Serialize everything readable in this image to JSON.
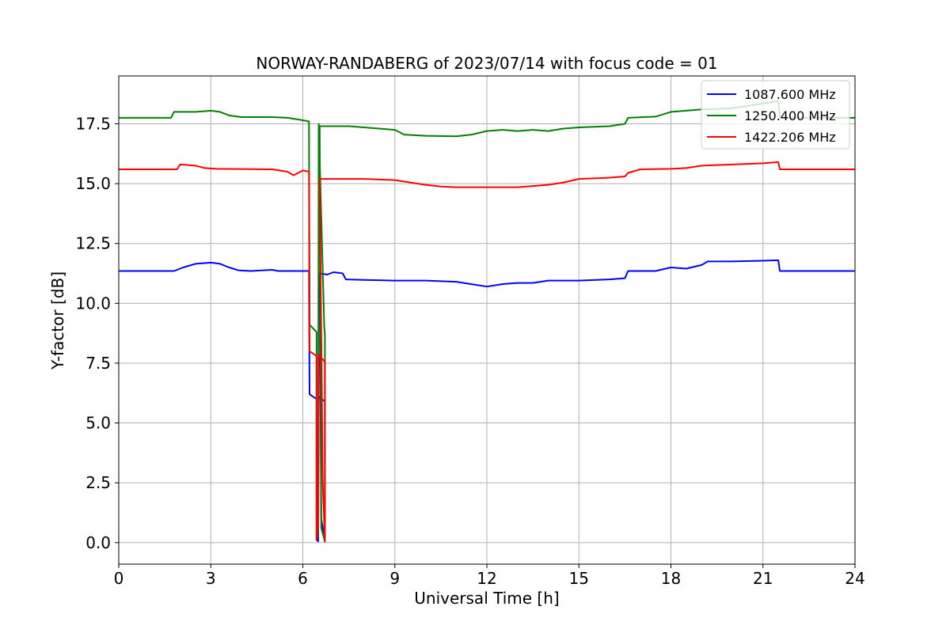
{
  "chart_data": {
    "type": "line",
    "title": "NORWAY-RANDABERG of 2023/07/14 with focus code = 01",
    "xlabel": "Universal Time [h]",
    "ylabel": "Y-factor [dB]",
    "xlim": [
      0,
      24
    ],
    "ylim": [
      -0.9,
      19.5
    ],
    "xticks": [
      0,
      3,
      6,
      9,
      12,
      15,
      18,
      21,
      24
    ],
    "xtick_labels": [
      "0",
      "3",
      "6",
      "9",
      "12",
      "15",
      "18",
      "21",
      "24"
    ],
    "yticks": [
      0.0,
      2.5,
      5.0,
      7.5,
      10.0,
      12.5,
      15.0,
      17.5
    ],
    "ytick_labels": [
      "0.0",
      "2.5",
      "5.0",
      "7.5",
      "10.0",
      "12.5",
      "15.0",
      "17.5"
    ],
    "grid": true,
    "legend_position": "top-right",
    "series": [
      {
        "name": "1087.600 MHz",
        "color": "#0000ff",
        "points": [
          [
            0,
            11.35
          ],
          [
            1.8,
            11.35
          ],
          [
            2.1,
            11.5
          ],
          [
            2.5,
            11.65
          ],
          [
            3.0,
            11.7
          ],
          [
            3.3,
            11.65
          ],
          [
            3.6,
            11.5
          ],
          [
            3.9,
            11.38
          ],
          [
            4.3,
            11.35
          ],
          [
            5.0,
            11.4
          ],
          [
            5.2,
            11.35
          ],
          [
            6.0,
            11.35
          ],
          [
            6.2,
            11.35
          ],
          [
            6.22,
            6.2
          ],
          [
            6.45,
            6.0
          ],
          [
            6.45,
            0.1
          ],
          [
            6.48,
            1.0
          ],
          [
            6.5,
            0.05
          ],
          [
            6.52,
            6.1
          ],
          [
            6.72,
            5.9
          ],
          [
            6.72,
            0.05
          ],
          [
            6.6,
            1.0
          ],
          [
            6.55,
            11.25
          ],
          [
            6.8,
            11.2
          ],
          [
            7.0,
            11.3
          ],
          [
            7.3,
            11.25
          ],
          [
            7.4,
            11.0
          ],
          [
            8.0,
            10.98
          ],
          [
            9.0,
            10.95
          ],
          [
            10.0,
            10.95
          ],
          [
            11.0,
            10.9
          ],
          [
            11.5,
            10.8
          ],
          [
            12.0,
            10.7
          ],
          [
            12.5,
            10.8
          ],
          [
            13.0,
            10.85
          ],
          [
            13.5,
            10.85
          ],
          [
            14.0,
            10.95
          ],
          [
            15.0,
            10.95
          ],
          [
            16.0,
            11.0
          ],
          [
            16.5,
            11.05
          ],
          [
            16.6,
            11.35
          ],
          [
            17.5,
            11.35
          ],
          [
            18.0,
            11.5
          ],
          [
            18.5,
            11.45
          ],
          [
            19.0,
            11.6
          ],
          [
            19.2,
            11.75
          ],
          [
            20.0,
            11.75
          ],
          [
            21.0,
            11.78
          ],
          [
            21.5,
            11.8
          ],
          [
            21.55,
            11.35
          ],
          [
            24.0,
            11.35
          ]
        ]
      },
      {
        "name": "1250.400 MHz",
        "color": "#008000",
        "points": [
          [
            0,
            17.75
          ],
          [
            1.7,
            17.75
          ],
          [
            1.8,
            18.0
          ],
          [
            2.5,
            18.0
          ],
          [
            3.0,
            18.05
          ],
          [
            3.3,
            18.0
          ],
          [
            3.6,
            17.85
          ],
          [
            4.0,
            17.78
          ],
          [
            5.0,
            17.78
          ],
          [
            5.5,
            17.75
          ],
          [
            6.0,
            17.65
          ],
          [
            6.2,
            17.6
          ],
          [
            6.22,
            9.1
          ],
          [
            6.45,
            8.8
          ],
          [
            6.45,
            0.1
          ],
          [
            6.5,
            0.5
          ],
          [
            6.52,
            17.5
          ],
          [
            6.7,
            9.0
          ],
          [
            6.72,
            8.7
          ],
          [
            6.72,
            0.05
          ],
          [
            6.6,
            0.6
          ],
          [
            6.55,
            17.4
          ],
          [
            7.5,
            17.4
          ],
          [
            8.0,
            17.35
          ],
          [
            9.0,
            17.25
          ],
          [
            9.3,
            17.05
          ],
          [
            10.0,
            17.0
          ],
          [
            11.0,
            16.98
          ],
          [
            11.5,
            17.05
          ],
          [
            12.0,
            17.2
          ],
          [
            12.5,
            17.25
          ],
          [
            13.0,
            17.2
          ],
          [
            13.5,
            17.25
          ],
          [
            14.0,
            17.2
          ],
          [
            14.5,
            17.3
          ],
          [
            15.0,
            17.35
          ],
          [
            16.0,
            17.4
          ],
          [
            16.5,
            17.5
          ],
          [
            16.6,
            17.75
          ],
          [
            17.5,
            17.8
          ],
          [
            18.0,
            18.0
          ],
          [
            18.5,
            18.05
          ],
          [
            19.0,
            18.1
          ],
          [
            19.2,
            18.1
          ],
          [
            20.0,
            18.15
          ],
          [
            21.0,
            18.35
          ],
          [
            21.5,
            18.45
          ],
          [
            21.55,
            17.75
          ],
          [
            24.0,
            17.75
          ]
        ]
      },
      {
        "name": "1422.206 MHz",
        "color": "#ff0000",
        "points": [
          [
            0,
            15.6
          ],
          [
            1.9,
            15.6
          ],
          [
            2.0,
            15.8
          ],
          [
            2.5,
            15.75
          ],
          [
            2.8,
            15.65
          ],
          [
            3.2,
            15.62
          ],
          [
            5.0,
            15.6
          ],
          [
            5.5,
            15.5
          ],
          [
            5.7,
            15.35
          ],
          [
            6.0,
            15.55
          ],
          [
            6.2,
            15.5
          ],
          [
            6.22,
            8.0
          ],
          [
            6.45,
            7.8
          ],
          [
            6.45,
            0.1
          ],
          [
            6.5,
            0.8
          ],
          [
            6.52,
            7.85
          ],
          [
            6.72,
            7.55
          ],
          [
            6.72,
            0.05
          ],
          [
            6.65,
            2.5
          ],
          [
            6.55,
            15.2
          ],
          [
            7.0,
            15.2
          ],
          [
            8.0,
            15.2
          ],
          [
            9.0,
            15.15
          ],
          [
            9.5,
            15.05
          ],
          [
            10.0,
            14.95
          ],
          [
            10.5,
            14.88
          ],
          [
            11.0,
            14.85
          ],
          [
            12.0,
            14.85
          ],
          [
            13.0,
            14.85
          ],
          [
            13.5,
            14.9
          ],
          [
            14.0,
            14.95
          ],
          [
            14.5,
            15.05
          ],
          [
            15.0,
            15.2
          ],
          [
            15.5,
            15.22
          ],
          [
            16.0,
            15.25
          ],
          [
            16.5,
            15.3
          ],
          [
            16.6,
            15.45
          ],
          [
            17.0,
            15.6
          ],
          [
            18.0,
            15.62
          ],
          [
            18.5,
            15.65
          ],
          [
            19.0,
            15.75
          ],
          [
            20.0,
            15.8
          ],
          [
            21.0,
            15.85
          ],
          [
            21.5,
            15.9
          ],
          [
            21.55,
            15.6
          ],
          [
            24.0,
            15.6
          ]
        ]
      }
    ]
  }
}
